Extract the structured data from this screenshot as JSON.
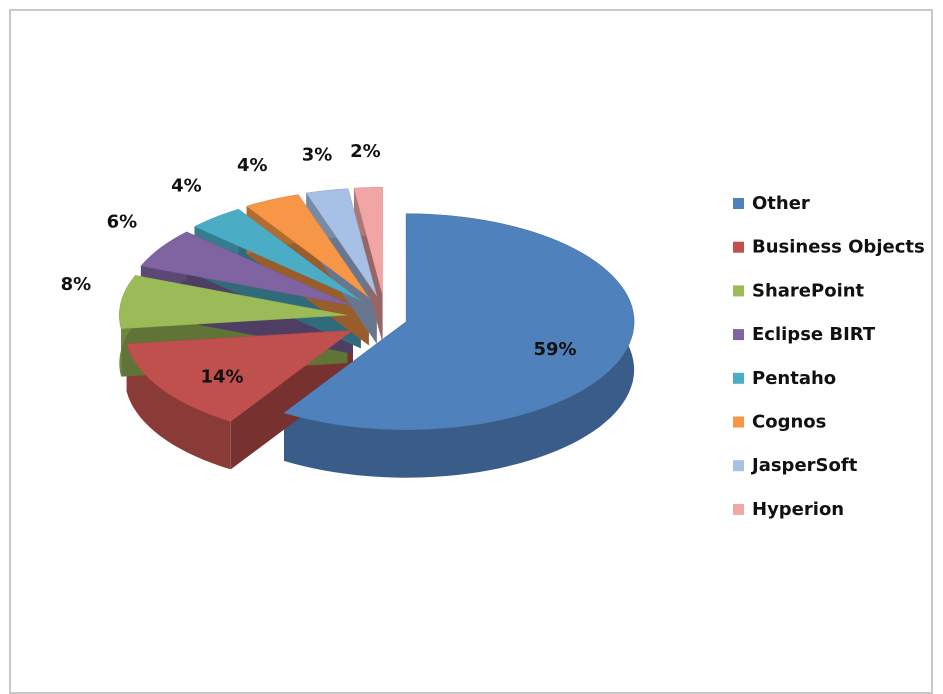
{
  "chart_data": {
    "type": "pie",
    "categories": [
      "Other",
      "Business Objects",
      "SharePoint",
      "Eclipse BIRT",
      "Pentaho",
      "Cognos",
      "JasperSoft",
      "Hyperion"
    ],
    "values": [
      59,
      14,
      8,
      6,
      4,
      4,
      3,
      2
    ],
    "value_labels": [
      "59%",
      "14%",
      "8%",
      "6%",
      "4%",
      "4%",
      "3%",
      "2%"
    ],
    "colors": [
      "#4f81bd",
      "#c0504d",
      "#9bbb59",
      "#8064a2",
      "#4bacc6",
      "#f79646",
      "#a7c0e6",
      "#f2a5a5"
    ],
    "legend": "right"
  }
}
